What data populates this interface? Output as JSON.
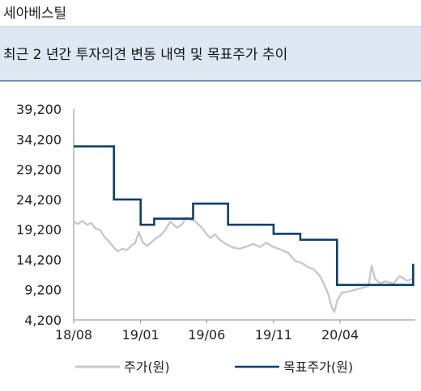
{
  "header": {
    "company": "세아베스틸",
    "title": "최근 2 년간 투자의견 변동 내역 및 목표주가 추이"
  },
  "chart_data": {
    "type": "line",
    "ylim": [
      4200,
      39200
    ],
    "yticks": [
      "39,200",
      "34,200",
      "29,200",
      "24,200",
      "19,200",
      "14,200",
      "9,200",
      "4,200"
    ],
    "xlim": [
      "2018-08-01",
      "2020-09-20"
    ],
    "xticks": [
      {
        "date": "2018-08-01",
        "label": "18/08"
      },
      {
        "date": "2019-01-01",
        "label": "19/01"
      },
      {
        "date": "2019-06-01",
        "label": "19/06"
      },
      {
        "date": "2019-11-01",
        "label": "19/11"
      },
      {
        "date": "2020-04-01",
        "label": "20/04"
      }
    ],
    "grid": false,
    "legend_position": "bottom",
    "series": [
      {
        "name": "주가(원)",
        "color": "#c8c8c8",
        "points": [
          [
            "2018-08-01",
            20500
          ],
          [
            "2018-08-10",
            20100
          ],
          [
            "2018-08-20",
            20600
          ],
          [
            "2018-09-01",
            20000
          ],
          [
            "2018-09-10",
            20300
          ],
          [
            "2018-09-20",
            19400
          ],
          [
            "2018-10-01",
            19100
          ],
          [
            "2018-10-10",
            18000
          ],
          [
            "2018-10-20",
            17300
          ],
          [
            "2018-11-01",
            16200
          ],
          [
            "2018-11-10",
            15600
          ],
          [
            "2018-11-20",
            16000
          ],
          [
            "2018-12-01",
            15800
          ],
          [
            "2018-12-10",
            16500
          ],
          [
            "2018-12-20",
            17000
          ],
          [
            "2018-12-28",
            18800
          ],
          [
            "2019-01-05",
            17200
          ],
          [
            "2019-01-15",
            16500
          ],
          [
            "2019-01-25",
            17000
          ],
          [
            "2019-02-05",
            17800
          ],
          [
            "2019-02-15",
            18200
          ],
          [
            "2019-02-25",
            19000
          ],
          [
            "2019-03-10",
            20500
          ],
          [
            "2019-03-25",
            19500
          ],
          [
            "2019-04-05",
            20000
          ],
          [
            "2019-04-15",
            21200
          ],
          [
            "2019-04-25",
            20800
          ],
          [
            "2019-05-05",
            20600
          ],
          [
            "2019-05-20",
            19600
          ],
          [
            "2019-06-01",
            18400
          ],
          [
            "2019-06-10",
            17800
          ],
          [
            "2019-06-20",
            18400
          ],
          [
            "2019-07-01",
            17500
          ],
          [
            "2019-07-15",
            16800
          ],
          [
            "2019-08-01",
            16200
          ],
          [
            "2019-08-15",
            16000
          ],
          [
            "2019-09-01",
            16400
          ],
          [
            "2019-09-15",
            16800
          ],
          [
            "2019-10-01",
            16300
          ],
          [
            "2019-10-15",
            17000
          ],
          [
            "2019-11-01",
            16300
          ],
          [
            "2019-11-20",
            15800
          ],
          [
            "2019-12-05",
            15300
          ],
          [
            "2019-12-20",
            14000
          ],
          [
            "2020-01-05",
            13600
          ],
          [
            "2020-01-20",
            12900
          ],
          [
            "2020-02-01",
            12600
          ],
          [
            "2020-02-15",
            11500
          ],
          [
            "2020-02-25",
            10000
          ],
          [
            "2020-03-05",
            8500
          ],
          [
            "2020-03-12",
            6500
          ],
          [
            "2020-03-19",
            5500
          ],
          [
            "2020-03-26",
            7500
          ],
          [
            "2020-04-05",
            8700
          ],
          [
            "2020-04-20",
            8900
          ],
          [
            "2020-05-05",
            9200
          ],
          [
            "2020-05-20",
            9500
          ],
          [
            "2020-06-05",
            9800
          ],
          [
            "2020-06-12",
            13200
          ],
          [
            "2020-06-20",
            11000
          ],
          [
            "2020-07-01",
            10300
          ],
          [
            "2020-07-15",
            10600
          ],
          [
            "2020-08-01",
            10200
          ],
          [
            "2020-08-15",
            11500
          ],
          [
            "2020-09-01",
            10700
          ],
          [
            "2020-09-15",
            11000
          ]
        ]
      },
      {
        "name": "목표주가(원)",
        "color": "#0d3f6b",
        "points": [
          [
            "2018-08-01",
            33000
          ],
          [
            "2018-11-01",
            33000
          ],
          [
            "2018-11-01",
            24200
          ],
          [
            "2019-01-01",
            24200
          ],
          [
            "2019-01-01",
            20000
          ],
          [
            "2019-02-01",
            20000
          ],
          [
            "2019-02-01",
            21000
          ],
          [
            "2019-05-01",
            21000
          ],
          [
            "2019-05-01",
            23500
          ],
          [
            "2019-07-20",
            23500
          ],
          [
            "2019-07-20",
            20000
          ],
          [
            "2019-11-01",
            20000
          ],
          [
            "2019-11-01",
            18500
          ],
          [
            "2020-01-01",
            18500
          ],
          [
            "2020-01-01",
            17500
          ],
          [
            "2020-03-25",
            17500
          ],
          [
            "2020-03-25",
            10000
          ],
          [
            "2020-09-15",
            10000
          ],
          [
            "2020-09-15",
            13500
          ]
        ]
      }
    ]
  }
}
